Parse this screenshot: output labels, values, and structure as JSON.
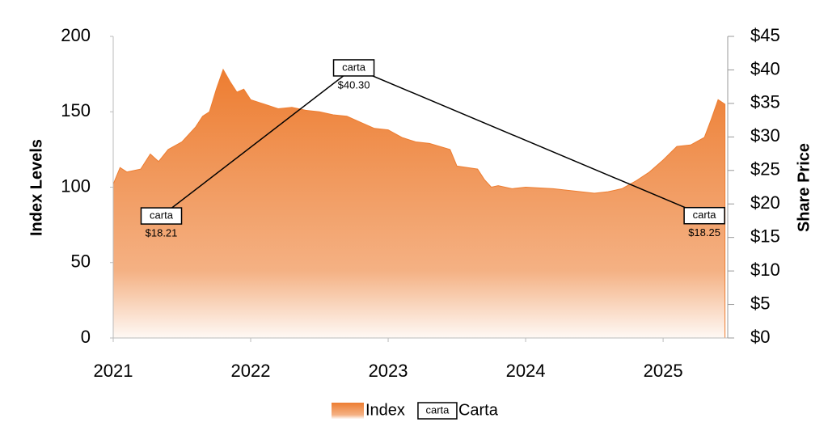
{
  "chart_data": {
    "type": "area-line",
    "y_label": "Index Levels",
    "y2_label": "Share Price",
    "xlim": [
      2021,
      2025.47
    ],
    "xticks": [
      2021,
      2022,
      2023,
      2024,
      2025
    ],
    "ylim": [
      0,
      200
    ],
    "yticks": [
      0,
      50,
      100,
      150,
      200
    ],
    "y2lim": [
      0,
      45
    ],
    "y2ticks": [
      {
        "value": 0,
        "label": "$0"
      },
      {
        "value": 5,
        "label": "$5"
      },
      {
        "value": 10,
        "label": "$10"
      },
      {
        "value": 15,
        "label": "$15"
      },
      {
        "value": 20,
        "label": "$20"
      },
      {
        "value": 25,
        "label": "$25"
      },
      {
        "value": 30,
        "label": "$30"
      },
      {
        "value": 35,
        "label": "$35"
      },
      {
        "value": 40,
        "label": "$40"
      },
      {
        "value": 45,
        "label": "$45"
      }
    ],
    "series": [
      {
        "name": "Index",
        "kind": "area",
        "color": "#ed7d31",
        "x": [
          2021.0,
          2021.05,
          2021.1,
          2021.2,
          2021.27,
          2021.33,
          2021.4,
          2021.5,
          2021.6,
          2021.65,
          2021.7,
          2021.75,
          2021.8,
          2021.85,
          2021.9,
          2021.95,
          2022.0,
          2022.1,
          2022.2,
          2022.3,
          2022.4,
          2022.5,
          2022.6,
          2022.7,
          2022.8,
          2022.9,
          2023.0,
          2023.1,
          2023.2,
          2023.3,
          2023.45,
          2023.5,
          2023.65,
          2023.7,
          2023.75,
          2023.8,
          2023.9,
          2024.0,
          2024.2,
          2024.4,
          2024.5,
          2024.6,
          2024.7,
          2024.8,
          2024.9,
          2025.0,
          2025.1,
          2025.2,
          2025.3,
          2025.35,
          2025.4,
          2025.45
        ],
        "values": [
          102,
          113,
          110,
          112,
          122,
          117,
          125,
          130,
          140,
          147,
          150,
          165,
          178,
          170,
          163,
          165,
          158,
          155,
          152,
          153,
          151,
          150,
          148,
          147,
          143,
          139,
          138,
          133,
          130,
          129,
          125,
          114,
          112,
          105,
          100,
          101,
          99,
          100,
          99,
          97,
          96,
          97,
          99,
          104,
          110,
          118,
          127,
          128,
          133,
          145,
          158,
          155
        ]
      },
      {
        "name": "Carta",
        "kind": "line",
        "axis": "y2",
        "color": "#000000",
        "marker_text": "carta",
        "x": [
          2021.35,
          2022.75,
          2025.3
        ],
        "values": [
          18.21,
          40.3,
          18.25
        ],
        "value_labels": [
          "$18.21",
          "$40.30",
          "$18.25"
        ]
      }
    ]
  }
}
